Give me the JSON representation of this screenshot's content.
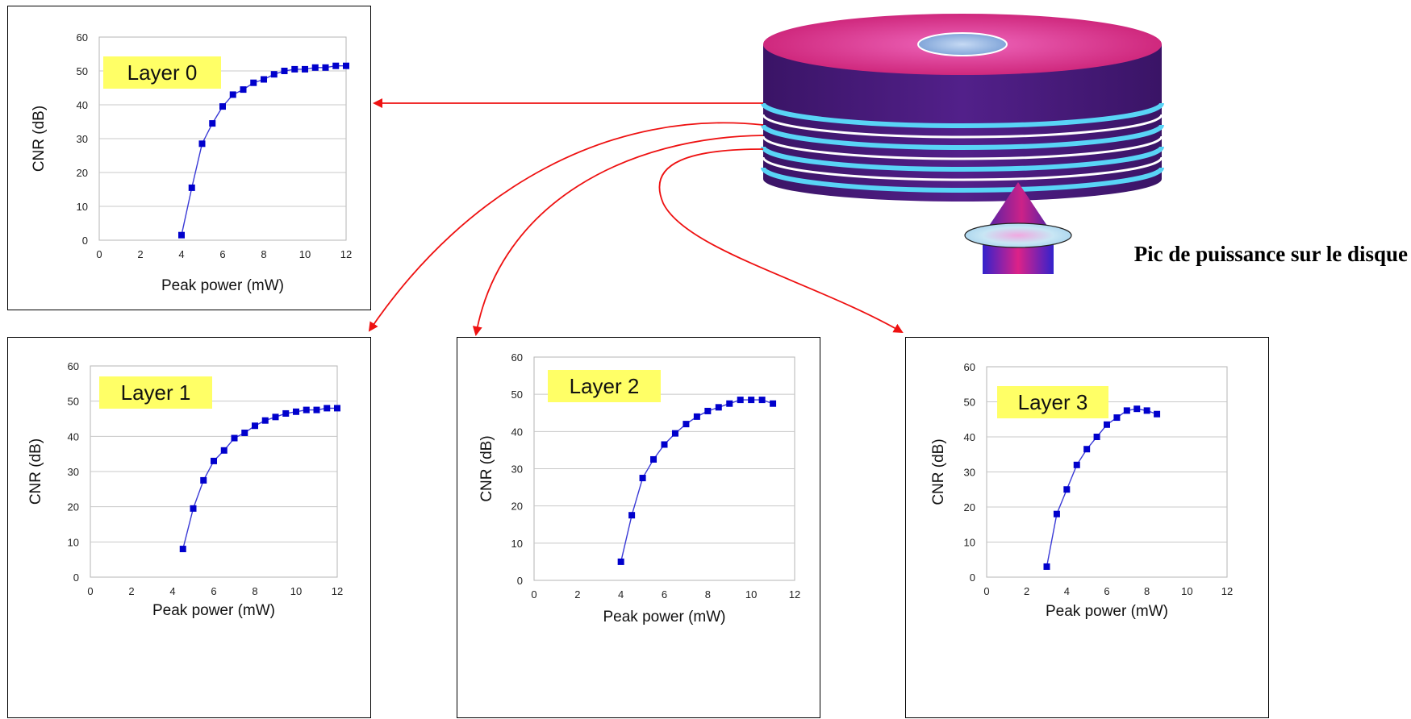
{
  "caption": "Pic de puissance sur le disque",
  "colors": {
    "marker": "#0000cc",
    "line": "#3a3ad6",
    "grid": "#c8c8c8",
    "label_bg": "#ffff66",
    "arrow": "#ee1111"
  },
  "chart_data": [
    {
      "type": "line",
      "label": "Layer 0",
      "xlabel": "Peak power  (mW)",
      "ylabel": "CNR  (dB)",
      "xlim": [
        0,
        12
      ],
      "ylim": [
        0,
        60
      ],
      "xticks": [
        "0",
        "2",
        "4",
        "6",
        "8",
        "10",
        "12"
      ],
      "yticks": [
        "0",
        "10",
        "20",
        "30",
        "40",
        "50",
        "60"
      ],
      "grid": "horizontal",
      "x": [
        4.0,
        4.5,
        5.0,
        5.5,
        6.0,
        6.5,
        7.0,
        7.5,
        8.0,
        8.5,
        9.0,
        9.5,
        10.0,
        10.5,
        11.0,
        11.5,
        12.0
      ],
      "y": [
        1.5,
        15.5,
        28.5,
        34.5,
        39.5,
        43.0,
        44.5,
        46.5,
        47.5,
        49.0,
        50.0,
        50.5,
        50.5,
        51.0,
        51.0,
        51.5,
        51.5
      ]
    },
    {
      "type": "line",
      "label": "Layer 1",
      "xlabel": "Peak power  (mW)",
      "ylabel": "CNR  (dB)",
      "xlim": [
        0,
        12
      ],
      "ylim": [
        0,
        60
      ],
      "xticks": [
        "0",
        "2",
        "4",
        "6",
        "8",
        "10",
        "12"
      ],
      "yticks": [
        "0",
        "10",
        "20",
        "30",
        "40",
        "50",
        "60"
      ],
      "grid": "horizontal",
      "x": [
        4.5,
        5.0,
        5.5,
        6.0,
        6.5,
        7.0,
        7.5,
        8.0,
        8.5,
        9.0,
        9.5,
        10.0,
        10.5,
        11.0,
        11.5,
        12.0
      ],
      "y": [
        8.0,
        19.5,
        27.5,
        33.0,
        36.0,
        39.5,
        41.0,
        43.0,
        44.5,
        45.5,
        46.5,
        47.0,
        47.5,
        47.5,
        48.0,
        48.0
      ]
    },
    {
      "type": "line",
      "label": "Layer 2",
      "xlabel": "Peak power  (mW)",
      "ylabel": "CNR  (dB)",
      "xlim": [
        0,
        12
      ],
      "ylim": [
        0,
        60
      ],
      "xticks": [
        "0",
        "2",
        "4",
        "6",
        "8",
        "10",
        "12"
      ],
      "yticks": [
        "0",
        "10",
        "20",
        "30",
        "40",
        "50",
        "60"
      ],
      "grid": "horizontal",
      "x": [
        4.0,
        4.5,
        5.0,
        5.5,
        6.0,
        6.5,
        7.0,
        7.5,
        8.0,
        8.5,
        9.0,
        9.5,
        10.0,
        10.5,
        11.0
      ],
      "y": [
        5.0,
        17.5,
        27.5,
        32.5,
        36.5,
        39.5,
        42.0,
        44.0,
        45.5,
        46.5,
        47.5,
        48.5,
        48.5,
        48.5,
        47.5
      ]
    },
    {
      "type": "line",
      "label": "Layer 3",
      "xlabel": "Peak power  (mW)",
      "ylabel": "CNR  (dB)",
      "xlim": [
        0,
        12
      ],
      "ylim": [
        0,
        60
      ],
      "xticks": [
        "0",
        "2",
        "4",
        "6",
        "8",
        "10",
        "12"
      ],
      "yticks": [
        "0",
        "10",
        "20",
        "30",
        "40",
        "50",
        "60"
      ],
      "grid": "horizontal",
      "x": [
        3.0,
        3.5,
        4.0,
        4.5,
        5.0,
        5.5,
        6.0,
        6.5,
        7.0,
        7.5,
        8.0,
        8.5
      ],
      "y": [
        3.0,
        18.0,
        25.0,
        32.0,
        36.5,
        40.0,
        43.5,
        45.5,
        47.5,
        48.0,
        47.5,
        46.5
      ]
    }
  ]
}
